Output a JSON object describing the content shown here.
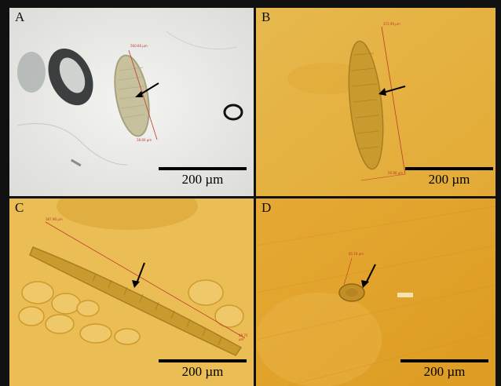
{
  "panels": [
    {
      "letter": "A",
      "scale_label": "200 µm",
      "bg": "#eeeeea",
      "tiny_top": "560.66 µm",
      "tiny_bottom": "58.60 µm"
    },
    {
      "letter": "B",
      "scale_label": "200 µm",
      "bg": "#e6b13c",
      "tiny_top": "372.90 µm",
      "tiny_bottom": "50.88 µm"
    },
    {
      "letter": "C",
      "scale_label": "200 µm",
      "bg": "#e8b443",
      "tiny_top": "387.96 µm",
      "tiny_bottom": "48.70 µm"
    },
    {
      "letter": "D",
      "scale_label": "200 µm",
      "bg": "#e3a52d",
      "tiny_top": "85.19 µm"
    }
  ]
}
